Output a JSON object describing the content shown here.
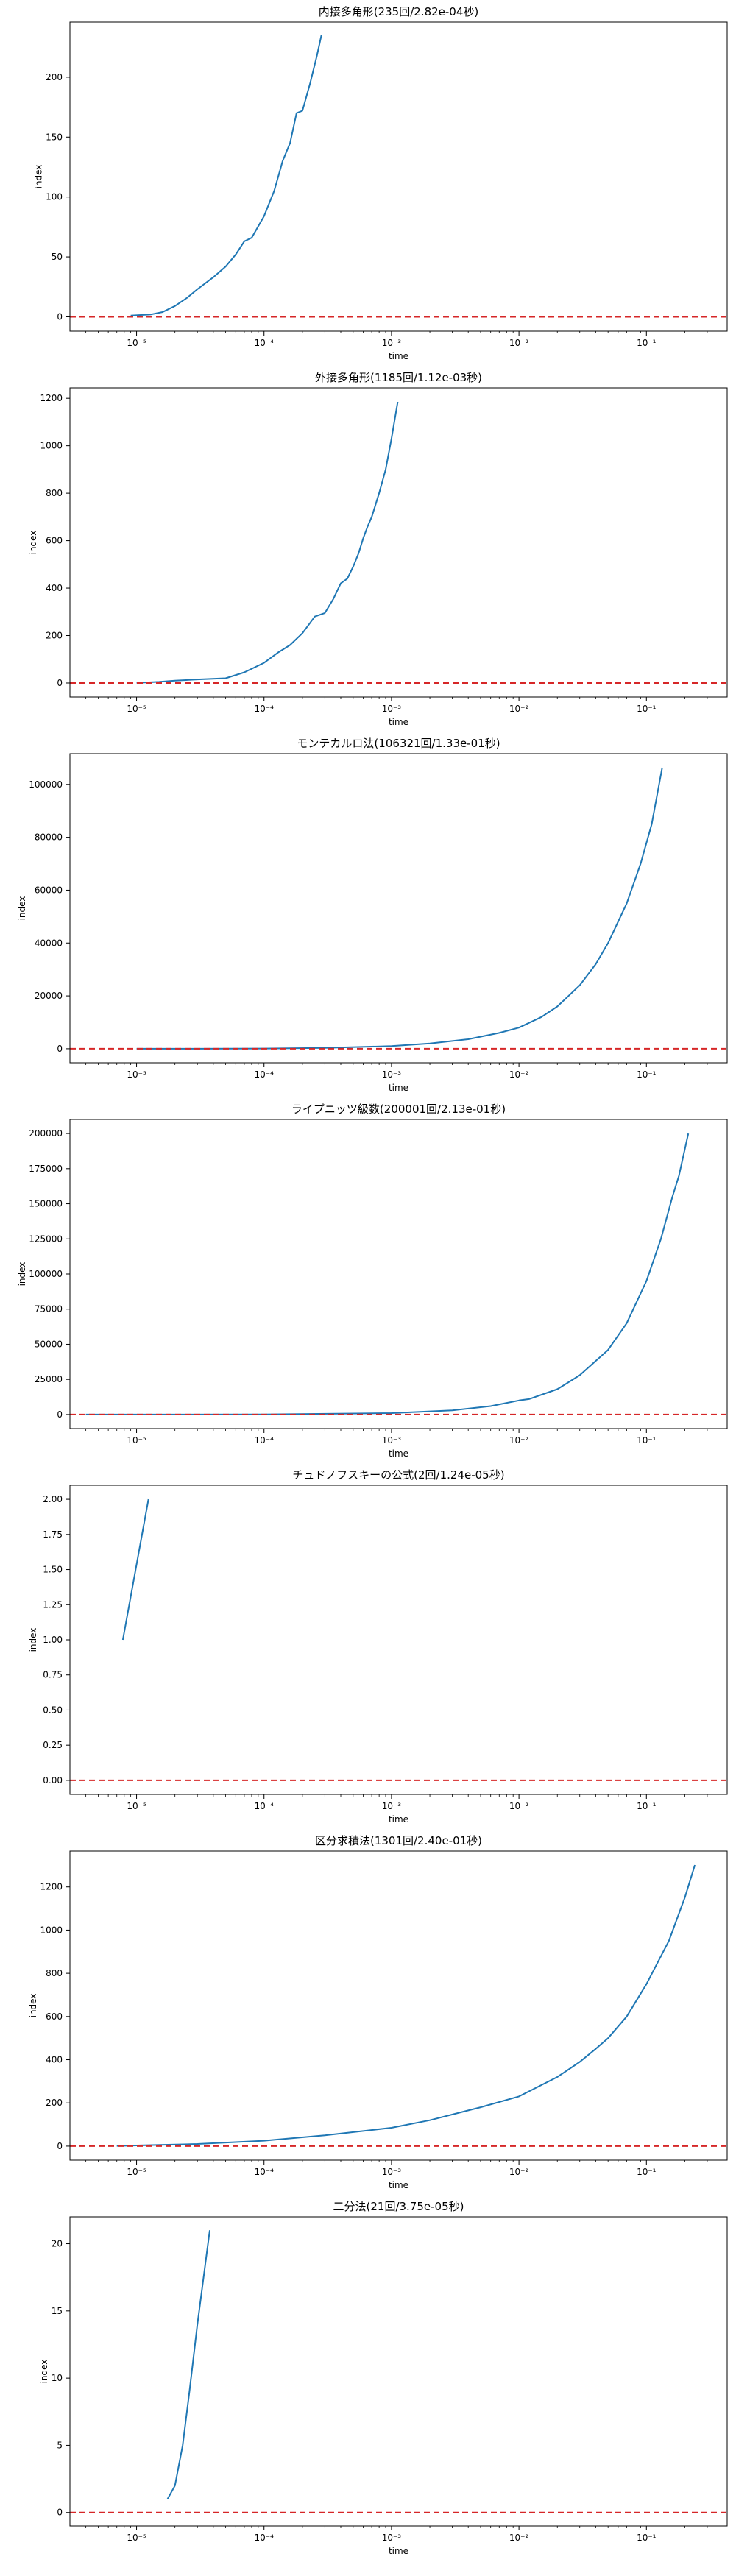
{
  "figure": {
    "colors": {
      "series": "#1f77b4",
      "reference": "#d62728",
      "axes": "#000000",
      "background": "#ffffff"
    }
  },
  "chart_data": [
    {
      "type": "line",
      "title": "内接多角形(235回/2.82e-04秒)",
      "xlabel": "time",
      "ylabel": "index",
      "xscale": "log",
      "xlim": [
        3e-06,
        0.43
      ],
      "ylim": [
        -12,
        246
      ],
      "xticks": [
        {
          "v": 1e-05,
          "label": "10⁻⁵"
        },
        {
          "v": 0.0001,
          "label": "10⁻⁴"
        },
        {
          "v": 0.001,
          "label": "10⁻³"
        },
        {
          "v": 0.01,
          "label": "10⁻²"
        },
        {
          "v": 0.1,
          "label": "10⁻¹"
        }
      ],
      "yticks": [
        {
          "v": 0,
          "label": "0"
        },
        {
          "v": 50,
          "label": "50"
        },
        {
          "v": 100,
          "label": "100"
        },
        {
          "v": 150,
          "label": "150"
        },
        {
          "v": 200,
          "label": "200"
        }
      ],
      "reference_line": {
        "y": 0,
        "style": "dashed"
      },
      "series": [
        {
          "x": [
            9e-06,
            1.3e-05,
            1.6e-05,
            2e-05,
            2.5e-05,
            3e-05,
            4e-05,
            5e-05,
            6e-05,
            7e-05,
            8e-05,
            0.0001,
            0.00012,
            0.00014,
            0.00016,
            0.00018,
            0.0002,
            0.00023,
            0.00026,
            0.000282
          ],
          "y": [
            1,
            2,
            4,
            9,
            16,
            23,
            33,
            42,
            52,
            63,
            66,
            84,
            105,
            130,
            145,
            170,
            172,
            195,
            218,
            235
          ]
        }
      ]
    },
    {
      "type": "line",
      "title": "外接多角形(1185回/1.12e-03秒)",
      "xlabel": "time",
      "ylabel": "index",
      "xscale": "log",
      "xlim": [
        3e-06,
        0.43
      ],
      "ylim": [
        -59,
        1244
      ],
      "xticks": [
        {
          "v": 1e-05,
          "label": "10⁻⁵"
        },
        {
          "v": 0.0001,
          "label": "10⁻⁴"
        },
        {
          "v": 0.001,
          "label": "10⁻³"
        },
        {
          "v": 0.01,
          "label": "10⁻²"
        },
        {
          "v": 0.1,
          "label": "10⁻¹"
        }
      ],
      "yticks": [
        {
          "v": 0,
          "label": "0"
        },
        {
          "v": 200,
          "label": "200"
        },
        {
          "v": 400,
          "label": "400"
        },
        {
          "v": 600,
          "label": "600"
        },
        {
          "v": 800,
          "label": "800"
        },
        {
          "v": 1000,
          "label": "1000"
        },
        {
          "v": 1200,
          "label": "1200"
        }
      ],
      "reference_line": {
        "y": 0,
        "style": "dashed"
      },
      "series": [
        {
          "x": [
            1e-05,
            1.5e-05,
            2e-05,
            3e-05,
            5e-05,
            7e-05,
            0.0001,
            0.00013,
            0.00016,
            0.0002,
            0.00025,
            0.0003,
            0.00035,
            0.0004,
            0.00045,
            0.0005,
            0.00055,
            0.0006,
            0.00065,
            0.0007,
            0.0008,
            0.0009,
            0.001,
            0.00112
          ],
          "y": [
            1,
            5,
            10,
            15,
            20,
            45,
            85,
            130,
            160,
            210,
            280,
            295,
            355,
            420,
            440,
            490,
            545,
            610,
            660,
            700,
            800,
            900,
            1030,
            1185
          ]
        }
      ]
    },
    {
      "type": "line",
      "title": "モンテカルロ法(106321回/1.33e-01秒)",
      "xlabel": "time",
      "ylabel": "index",
      "xscale": "log",
      "xlim": [
        3e-06,
        0.43
      ],
      "ylim": [
        -5316,
        111637
      ],
      "xticks": [
        {
          "v": 1e-05,
          "label": "10⁻⁵"
        },
        {
          "v": 0.0001,
          "label": "10⁻⁴"
        },
        {
          "v": 0.001,
          "label": "10⁻³"
        },
        {
          "v": 0.01,
          "label": "10⁻²"
        },
        {
          "v": 0.1,
          "label": "10⁻¹"
        }
      ],
      "yticks": [
        {
          "v": 0,
          "label": "0"
        },
        {
          "v": 20000,
          "label": "20000"
        },
        {
          "v": 40000,
          "label": "40000"
        },
        {
          "v": 60000,
          "label": "60000"
        },
        {
          "v": 80000,
          "label": "80000"
        },
        {
          "v": 100000,
          "label": "100000"
        }
      ],
      "reference_line": {
        "y": 0,
        "style": "dashed"
      },
      "series": [
        {
          "x": [
            1e-05,
            3e-05,
            0.0001,
            0.0003,
            0.001,
            0.002,
            0.004,
            0.007,
            0.01,
            0.015,
            0.02,
            0.03,
            0.04,
            0.05,
            0.07,
            0.09,
            0.11,
            0.133
          ],
          "y": [
            1,
            15,
            80,
            300,
            1000,
            2000,
            3600,
            6000,
            8000,
            12000,
            16000,
            24000,
            32000,
            40000,
            55000,
            70000,
            85000,
            106321
          ]
        }
      ]
    },
    {
      "type": "line",
      "title": "ライプニッツ級数(200001回/2.13e-01秒)",
      "xlabel": "time",
      "ylabel": "index",
      "xscale": "log",
      "xlim": [
        3e-06,
        0.43
      ],
      "ylim": [
        -10000,
        210001
      ],
      "xticks": [
        {
          "v": 1e-05,
          "label": "10⁻⁵"
        },
        {
          "v": 0.0001,
          "label": "10⁻⁴"
        },
        {
          "v": 0.001,
          "label": "10⁻³"
        },
        {
          "v": 0.01,
          "label": "10⁻²"
        },
        {
          "v": 0.1,
          "label": "10⁻¹"
        }
      ],
      "yticks": [
        {
          "v": 0,
          "label": "0"
        },
        {
          "v": 25000,
          "label": "25000"
        },
        {
          "v": 50000,
          "label": "50000"
        },
        {
          "v": 75000,
          "label": "75000"
        },
        {
          "v": 100000,
          "label": "100000"
        },
        {
          "v": 125000,
          "label": "125000"
        },
        {
          "v": 150000,
          "label": "150000"
        },
        {
          "v": 175000,
          "label": "175000"
        },
        {
          "v": 200000,
          "label": "200000"
        }
      ],
      "reference_line": {
        "y": 0,
        "style": "dashed"
      },
      "series": [
        {
          "x": [
            4e-06,
            1e-05,
            0.0001,
            0.001,
            0.003,
            0.006,
            0.01,
            0.012,
            0.02,
            0.03,
            0.05,
            0.07,
            0.1,
            0.13,
            0.16,
            0.18,
            0.213
          ],
          "y": [
            1,
            10,
            100,
            1000,
            3000,
            6000,
            10000,
            11000,
            18000,
            28000,
            46000,
            65000,
            95000,
            125000,
            155000,
            170000,
            200001
          ]
        }
      ]
    },
    {
      "type": "line",
      "title": "チュドノフスキーの公式(2回/1.24e-05秒)",
      "xlabel": "time",
      "ylabel": "index",
      "xscale": "log",
      "xlim": [
        3e-06,
        0.43
      ],
      "ylim": [
        -0.1,
        2.1
      ],
      "xticks": [
        {
          "v": 1e-05,
          "label": "10⁻⁵"
        },
        {
          "v": 0.0001,
          "label": "10⁻⁴"
        },
        {
          "v": 0.001,
          "label": "10⁻³"
        },
        {
          "v": 0.01,
          "label": "10⁻²"
        },
        {
          "v": 0.1,
          "label": "10⁻¹"
        }
      ],
      "yticks": [
        {
          "v": 0,
          "label": "0.00"
        },
        {
          "v": 0.25,
          "label": "0.25"
        },
        {
          "v": 0.5,
          "label": "0.50"
        },
        {
          "v": 0.75,
          "label": "0.75"
        },
        {
          "v": 1,
          "label": "1.00"
        },
        {
          "v": 1.25,
          "label": "1.25"
        },
        {
          "v": 1.5,
          "label": "1.50"
        },
        {
          "v": 1.75,
          "label": "1.75"
        },
        {
          "v": 2,
          "label": "2.00"
        }
      ],
      "reference_line": {
        "y": 0,
        "style": "dashed"
      },
      "series": [
        {
          "x": [
            7.8e-06,
            1.24e-05
          ],
          "y": [
            1,
            2
          ]
        }
      ]
    },
    {
      "type": "line",
      "title": "区分求積法(1301回/2.40e-01秒)",
      "xlabel": "time",
      "ylabel": "index",
      "xscale": "log",
      "xlim": [
        3e-06,
        0.43
      ],
      "ylim": [
        -65,
        1366
      ],
      "xticks": [
        {
          "v": 1e-05,
          "label": "10⁻⁵"
        },
        {
          "v": 0.0001,
          "label": "10⁻⁴"
        },
        {
          "v": 0.001,
          "label": "10⁻³"
        },
        {
          "v": 0.01,
          "label": "10⁻²"
        },
        {
          "v": 0.1,
          "label": "10⁻¹"
        }
      ],
      "yticks": [
        {
          "v": 0,
          "label": "0"
        },
        {
          "v": 200,
          "label": "200"
        },
        {
          "v": 400,
          "label": "400"
        },
        {
          "v": 600,
          "label": "600"
        },
        {
          "v": 800,
          "label": "800"
        },
        {
          "v": 1000,
          "label": "1000"
        },
        {
          "v": 1200,
          "label": "1200"
        }
      ],
      "reference_line": {
        "y": 0,
        "style": "dashed"
      },
      "series": [
        {
          "x": [
            7e-06,
            1e-05,
            3e-05,
            0.0001,
            0.0003,
            0.001,
            0.002,
            0.005,
            0.01,
            0.02,
            0.03,
            0.04,
            0.05,
            0.07,
            0.1,
            0.15,
            0.2,
            0.24
          ],
          "y": [
            1,
            3,
            10,
            25,
            50,
            85,
            120,
            180,
            230,
            320,
            390,
            450,
            500,
            600,
            750,
            950,
            1150,
            1301
          ]
        }
      ]
    },
    {
      "type": "line",
      "title": "二分法(21回/3.75e-05秒)",
      "xlabel": "time",
      "ylabel": "index",
      "xscale": "log",
      "xlim": [
        3e-06,
        0.43
      ],
      "ylim": [
        -1,
        22
      ],
      "xticks": [
        {
          "v": 1e-05,
          "label": "10⁻⁵"
        },
        {
          "v": 0.0001,
          "label": "10⁻⁴"
        },
        {
          "v": 0.001,
          "label": "10⁻³"
        },
        {
          "v": 0.01,
          "label": "10⁻²"
        },
        {
          "v": 0.1,
          "label": "10⁻¹"
        }
      ],
      "yticks": [
        {
          "v": 0,
          "label": "0"
        },
        {
          "v": 5,
          "label": "5"
        },
        {
          "v": 10,
          "label": "10"
        },
        {
          "v": 15,
          "label": "15"
        },
        {
          "v": 20,
          "label": "20"
        }
      ],
      "reference_line": {
        "y": 0,
        "style": "dashed"
      },
      "series": [
        {
          "x": [
            1.75e-05,
            2e-05,
            2.3e-05,
            2.6e-05,
            3e-05,
            3.3e-05,
            3.75e-05
          ],
          "y": [
            1,
            2,
            5,
            9,
            14,
            17,
            21
          ]
        }
      ]
    }
  ]
}
